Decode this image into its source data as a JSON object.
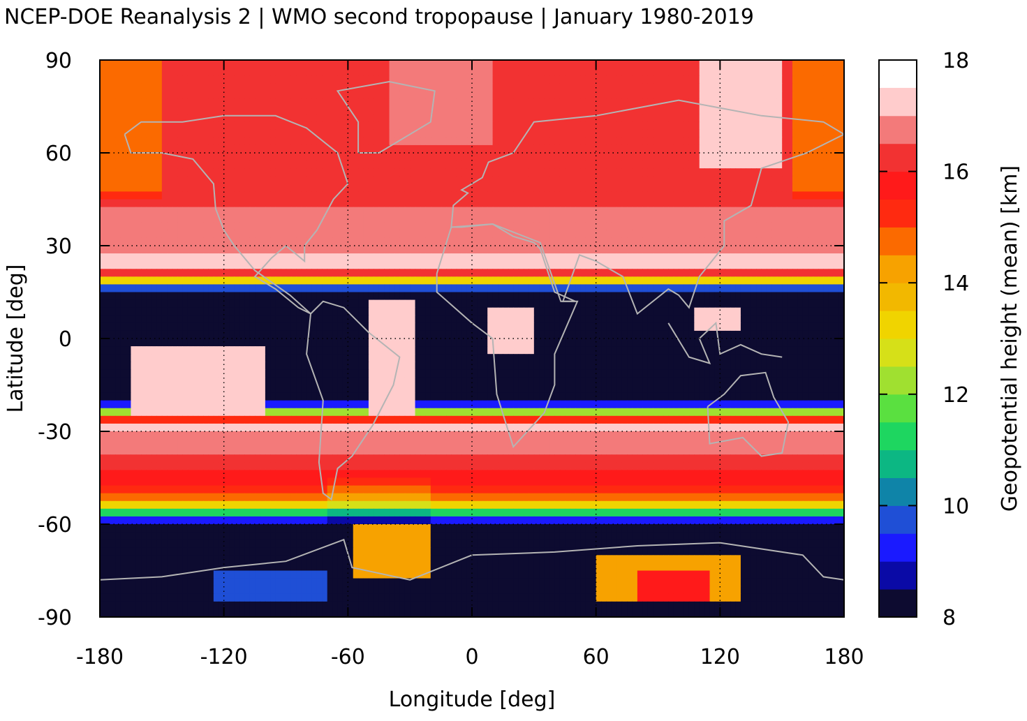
{
  "chart_data": {
    "type": "heatmap",
    "title": "NCEP-DOE Reanalysis 2 | WMO second tropopause | January 1980-2019",
    "xlabel": "Longitude [deg]",
    "ylabel": "Latitude [deg]",
    "xlim": [
      -180,
      180
    ],
    "ylim": [
      -90,
      90
    ],
    "x_ticks": [
      "-180",
      "-120",
      "-60",
      "0",
      "60",
      "120",
      "180"
    ],
    "y_ticks": [
      "90",
      "60",
      "30",
      "0",
      "-30",
      "-60",
      "-90"
    ],
    "grid": "dotted",
    "colorbar": {
      "label": "Geopotential height (mean) [km]",
      "range": [
        8,
        18
      ],
      "ticks": [
        "18",
        "16",
        "14",
        "12",
        "10",
        "8"
      ],
      "levels": [
        8,
        8.5,
        9,
        9.5,
        10,
        10.5,
        11,
        11.5,
        12,
        12.5,
        13,
        13.5,
        14,
        14.5,
        15,
        15.5,
        16,
        16.5,
        17,
        17.5,
        18
      ],
      "colors": [
        "#0d0b30",
        "#0a0aa6",
        "#1a1aff",
        "#1f4fd6",
        "#0f84a8",
        "#0cb783",
        "#1ed660",
        "#5ae040",
        "#a0e030",
        "#d6e018",
        "#f0d400",
        "#f2b800",
        "#f7a200",
        "#fb6a00",
        "#ff2a10",
        "#ff1a1a",
        "#f23232",
        "#f37a7a",
        "#ffcccc"
      ]
    },
    "overlay": "coastlines",
    "zonal_mean_km": [
      {
        "lat": 90,
        "value": 16.3
      },
      {
        "lat": 60,
        "value": 16.0
      },
      {
        "lat": 45,
        "value": 16.4
      },
      {
        "lat": 30,
        "value": 16.8
      },
      {
        "lat": 22,
        "value": 17.4
      },
      {
        "lat": 15,
        "value": 8.0
      },
      {
        "lat": 0,
        "value": 8.0
      },
      {
        "lat": -20,
        "value": 8.0
      },
      {
        "lat": -28,
        "value": 17.2
      },
      {
        "lat": -40,
        "value": 16.3
      },
      {
        "lat": -52,
        "value": 14.8
      },
      {
        "lat": -60,
        "value": 8.0
      },
      {
        "lat": -90,
        "value": 8.0
      }
    ]
  }
}
